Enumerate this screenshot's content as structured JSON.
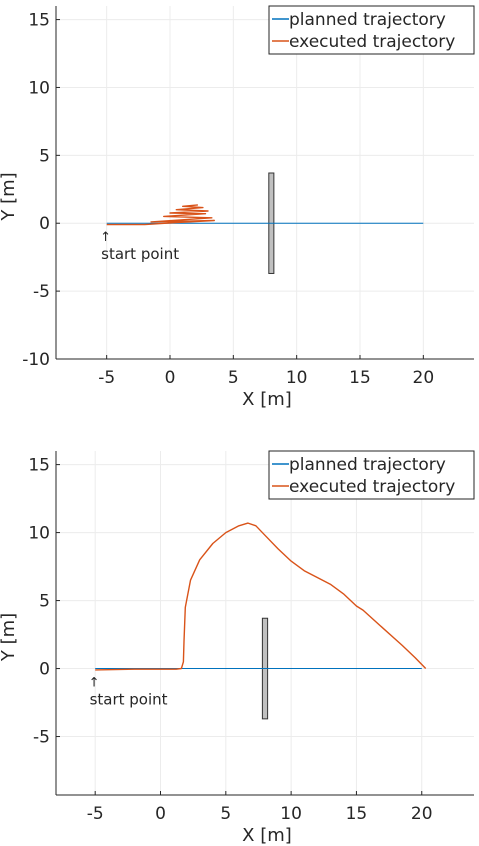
{
  "chart_data": [
    {
      "type": "line",
      "title": "",
      "xlabel": "X [m]",
      "ylabel": "Y [m]",
      "xlim": [
        -9,
        24
      ],
      "ylim": [
        -10,
        16
      ],
      "xticks": [
        -5,
        0,
        5,
        10,
        15,
        20
      ],
      "yticks": [
        -10,
        -5,
        0,
        5,
        10,
        15
      ],
      "grid": true,
      "legend_position": "top-right",
      "annotation": "start point",
      "annotation_arrow": "↑",
      "colors": {
        "planned": "#0072BD",
        "executed": "#D95319",
        "obstacle_fill": "#c0c0c0",
        "obstacle_edge": "#333333"
      },
      "obstacle": {
        "x": [
          7.8,
          8.2
        ],
        "y": [
          -3.7,
          3.7
        ]
      },
      "series": [
        {
          "name": "planned trajectory",
          "x": [
            -5,
            20
          ],
          "y": [
            0,
            0
          ]
        },
        {
          "name": "executed trajectory",
          "x": [
            -5,
            -2,
            0.5,
            3.5,
            -1.5,
            3.3,
            -0.5,
            2.8,
            0,
            3,
            0.5,
            2.6,
            1,
            2.2
          ],
          "y": [
            -0.1,
            -0.1,
            0.05,
            0.2,
            0.1,
            0.4,
            0.5,
            0.7,
            0.75,
            0.9,
            1.0,
            1.15,
            1.25,
            1.35
          ]
        }
      ]
    },
    {
      "type": "line",
      "title": "",
      "xlabel": "X [m]",
      "ylabel": "Y [m]",
      "xlim": [
        -8,
        24
      ],
      "ylim": [
        -9.3,
        16
      ],
      "xticks": [
        -5,
        0,
        5,
        10,
        15,
        20
      ],
      "yticks": [
        -5,
        0,
        5,
        10,
        15
      ],
      "grid": true,
      "legend_position": "top-right",
      "annotation": "start point",
      "annotation_arrow": "↑",
      "colors": {
        "planned": "#0072BD",
        "executed": "#D95319",
        "obstacle_fill": "#c0c0c0",
        "obstacle_edge": "#333333"
      },
      "obstacle": {
        "x": [
          7.8,
          8.2
        ],
        "y": [
          -3.7,
          3.7
        ]
      },
      "series": [
        {
          "name": "planned trajectory",
          "x": [
            -5,
            20
          ],
          "y": [
            0,
            0
          ]
        },
        {
          "name": "executed trajectory",
          "x": [
            -5,
            -2,
            0,
            1.2,
            1.6,
            1.75,
            1.8,
            1.9,
            2.3,
            3,
            4,
            5,
            6,
            6.7,
            7.3,
            8,
            9,
            10,
            11,
            12,
            13,
            14,
            15,
            15.5,
            17,
            18.5,
            19.5,
            20.3
          ],
          "y": [
            -0.1,
            -0.05,
            -0.05,
            -0.05,
            0,
            0.5,
            2,
            4.5,
            6.5,
            8,
            9.2,
            10,
            10.5,
            10.7,
            10.5,
            9.8,
            8.8,
            7.9,
            7.2,
            6.7,
            6.2,
            5.5,
            4.6,
            4.3,
            3.0,
            1.7,
            0.8,
            0.0
          ]
        }
      ]
    }
  ]
}
